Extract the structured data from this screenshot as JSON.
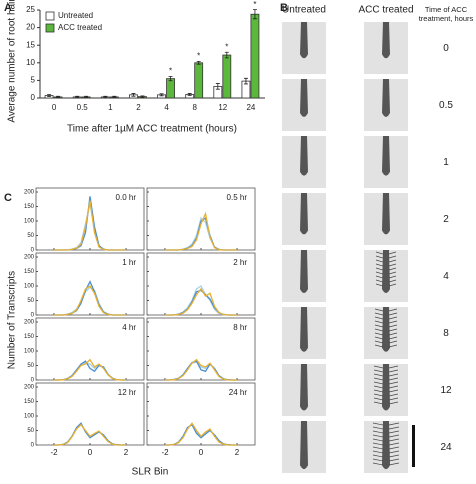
{
  "chart_data": [
    {
      "type": "bar",
      "panel_label": "A",
      "ylabel": "Average number of root hairs",
      "xlabel": "Time after 1µM ACC treatment (hours)",
      "categories": [
        "0",
        "0.5",
        "1",
        "2",
        "4",
        "8",
        "12",
        "24"
      ],
      "series": [
        {
          "name": "Untreated",
          "color": "#ffffff",
          "values": [
            0.7,
            0.3,
            0.3,
            0.9,
            0.9,
            1.0,
            3.3,
            4.8
          ],
          "errors": [
            0.3,
            0.2,
            0.2,
            0.4,
            0.3,
            0.3,
            0.8,
            0.8
          ]
        },
        {
          "name": "ACC treated",
          "color": "#5cb83c",
          "values": [
            0.3,
            0.3,
            0.3,
            0.4,
            5.5,
            10.0,
            12.2,
            23.8
          ],
          "errors": [
            0.2,
            0.2,
            0.2,
            0.2,
            0.6,
            0.4,
            0.8,
            1.3
          ],
          "markers": [
            null,
            null,
            null,
            null,
            "*",
            "*",
            "*",
            "*"
          ]
        }
      ],
      "ylim": [
        0,
        25
      ],
      "yticks": [
        0,
        5,
        10,
        15,
        20,
        25
      ],
      "legend": "upper left"
    },
    {
      "type": "line",
      "panel_label": "C",
      "ylabel": "Number of Transcripts",
      "xlabel": "SLR Bin",
      "x": [
        -2,
        -1.75,
        -1.5,
        -1.25,
        -1,
        -0.75,
        -0.5,
        -0.25,
        0,
        0.25,
        0.5,
        0.75,
        1,
        1.25,
        1.5,
        1.75,
        2
      ],
      "xlim": [
        -3,
        3
      ],
      "xticks": [
        -2,
        0,
        2
      ],
      "ylim": [
        0,
        200
      ],
      "yticks": [
        0,
        50,
        100,
        150,
        200
      ],
      "colors": [
        "#a8d0ea",
        "#4a8fd0",
        "#e8b030"
      ],
      "panels": [
        {
          "label": "0.0 hr",
          "series": [
            {
              "values": [
                0,
                0,
                0,
                0,
                3,
                8,
                25,
                90,
                160,
                70,
                12,
                3,
                0,
                0,
                0,
                0,
                0
              ]
            },
            {
              "values": [
                0,
                0,
                0,
                0,
                2,
                5,
                15,
                60,
                185,
                80,
                15,
                3,
                0,
                0,
                0,
                0,
                0
              ]
            },
            {
              "values": [
                0,
                0,
                0,
                0,
                2,
                6,
                20,
                80,
                170,
                60,
                10,
                2,
                0,
                0,
                0,
                0,
                0
              ]
            }
          ]
        },
        {
          "label": "0.5 hr",
          "series": [
            {
              "values": [
                0,
                0,
                0,
                0,
                3,
                8,
                20,
                50,
                110,
                95,
                40,
                10,
                2,
                0,
                0,
                0,
                0
              ]
            },
            {
              "values": [
                0,
                0,
                0,
                0,
                2,
                6,
                15,
                40,
                100,
                110,
                50,
                10,
                2,
                0,
                0,
                0,
                0
              ]
            },
            {
              "values": [
                0,
                0,
                0,
                0,
                2,
                5,
                12,
                35,
                90,
                125,
                45,
                8,
                1,
                0,
                0,
                0,
                0
              ]
            }
          ]
        },
        {
          "label": "1 hr",
          "series": [
            {
              "values": [
                0,
                0,
                0,
                3,
                8,
                20,
                45,
                80,
                95,
                85,
                40,
                12,
                3,
                0,
                0,
                0,
                0
              ]
            },
            {
              "values": [
                0,
                0,
                0,
                2,
                6,
                15,
                40,
                85,
                115,
                80,
                35,
                10,
                3,
                0,
                0,
                0,
                0
              ]
            },
            {
              "values": [
                0,
                0,
                0,
                2,
                5,
                18,
                50,
                90,
                100,
                75,
                30,
                8,
                2,
                0,
                0,
                0,
                0
              ]
            }
          ]
        },
        {
          "label": "2 hr",
          "series": [
            {
              "values": [
                0,
                0,
                0,
                3,
                10,
                25,
                50,
                90,
                100,
                70,
                50,
                20,
                5,
                1,
                0,
                0,
                0
              ]
            },
            {
              "values": [
                0,
                0,
                0,
                3,
                8,
                20,
                45,
                80,
                85,
                70,
                55,
                25,
                8,
                2,
                0,
                0,
                0
              ]
            },
            {
              "values": [
                0,
                0,
                0,
                2,
                6,
                18,
                40,
                70,
                90,
                65,
                75,
                30,
                8,
                2,
                0,
                0,
                0
              ]
            }
          ]
        },
        {
          "label": "4 hr",
          "series": [
            {
              "values": [
                0,
                0,
                1,
                5,
                14,
                32,
                52,
                60,
                55,
                40,
                52,
                42,
                18,
                5,
                1,
                0,
                0
              ]
            },
            {
              "values": [
                0,
                0,
                1,
                5,
                15,
                35,
                55,
                65,
                40,
                30,
                50,
                45,
                20,
                6,
                1,
                0,
                0
              ]
            },
            {
              "values": [
                0,
                0,
                1,
                4,
                12,
                30,
                50,
                55,
                70,
                45,
                55,
                40,
                18,
                5,
                1,
                0,
                0
              ]
            }
          ]
        },
        {
          "label": "8 hr",
          "series": [
            {
              "values": [
                0,
                0,
                1,
                5,
                16,
                38,
                58,
                62,
                45,
                40,
                55,
                38,
                14,
                4,
                1,
                0,
                0
              ]
            },
            {
              "values": [
                0,
                0,
                2,
                6,
                18,
                40,
                60,
                65,
                35,
                30,
                55,
                40,
                15,
                4,
                1,
                0,
                0
              ]
            },
            {
              "values": [
                0,
                0,
                1,
                5,
                15,
                35,
                58,
                70,
                50,
                45,
                58,
                35,
                12,
                3,
                0,
                0,
                0
              ]
            }
          ]
        },
        {
          "label": "12 hr",
          "series": [
            {
              "values": [
                0,
                0,
                2,
                9,
                29,
                58,
                72,
                48,
                28,
                38,
                46,
                32,
                13,
                3,
                0,
                0,
                0
              ]
            },
            {
              "values": [
                0,
                0,
                2,
                10,
                30,
                60,
                75,
                45,
                25,
                35,
                45,
                35,
                15,
                4,
                1,
                0,
                0
              ]
            },
            {
              "values": [
                0,
                0,
                2,
                8,
                28,
                55,
                70,
                50,
                30,
                40,
                48,
                30,
                12,
                3,
                0,
                0,
                0
              ]
            }
          ]
        },
        {
          "label": "24 hr",
          "series": [
            {
              "values": [
                0,
                0,
                2,
                9,
                28,
                58,
                72,
                45,
                28,
                42,
                52,
                32,
                12,
                3,
                0,
                0,
                0
              ]
            },
            {
              "values": [
                0,
                0,
                2,
                10,
                30,
                60,
                70,
                40,
                25,
                38,
                50,
                35,
                15,
                4,
                1,
                0,
                0
              ]
            },
            {
              "values": [
                0,
                0,
                2,
                8,
                25,
                55,
                75,
                50,
                30,
                45,
                55,
                30,
                10,
                3,
                0,
                0,
                0
              ]
            }
          ]
        }
      ]
    }
  ],
  "panel_b": {
    "panel_label": "B",
    "columns": [
      "Untreated",
      "ACC treated"
    ],
    "time_header": [
      "Time of ACC",
      "treatment, hours"
    ],
    "times": [
      "0",
      "0.5",
      "1",
      "2",
      "4",
      "8",
      "12",
      "24"
    ]
  }
}
